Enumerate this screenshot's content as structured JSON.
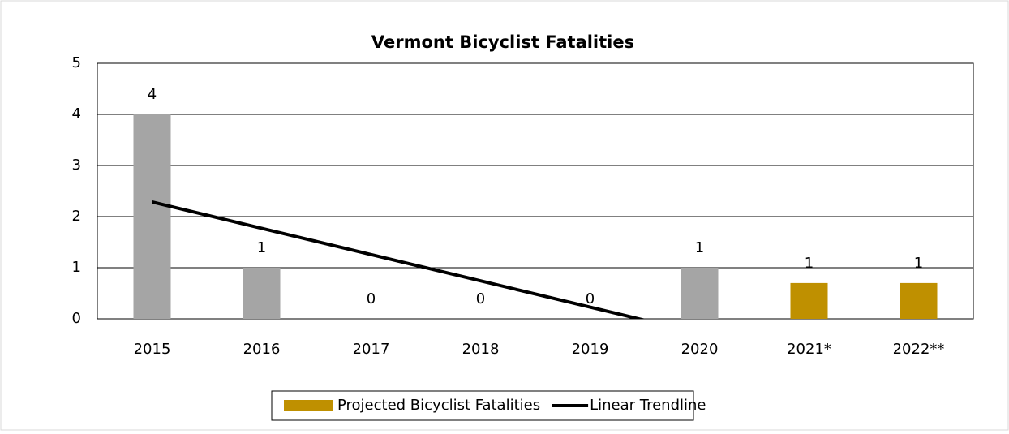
{
  "chart_data": {
    "type": "bar",
    "title": "Vermont Bicyclist Fatalities",
    "categories": [
      "2015",
      "2016",
      "2017",
      "2018",
      "2019",
      "2020",
      "2021*",
      "2022**"
    ],
    "series": [
      {
        "color": "#a5a5a5",
        "values": [
          4,
          1,
          0,
          0,
          0,
          1,
          null,
          null
        ]
      },
      {
        "name": "Projected Bicyclist Fatalities",
        "color": "#bf9000",
        "values": [
          null,
          null,
          null,
          null,
          null,
          null,
          0.7,
          0.7
        ],
        "value_labels": [
          null,
          null,
          null,
          null,
          null,
          null,
          "1",
          "1"
        ]
      },
      {
        "name": "Linear Trendline",
        "type": "line",
        "color": "#000000",
        "values": [
          2.286,
          1.771,
          1.257,
          0.743,
          0.229,
          -0.286,
          null,
          null
        ]
      }
    ],
    "ylim": [
      0,
      5
    ],
    "yticks": [
      0,
      1,
      2,
      3,
      4,
      5
    ],
    "grid": true,
    "legend": "bottom"
  }
}
